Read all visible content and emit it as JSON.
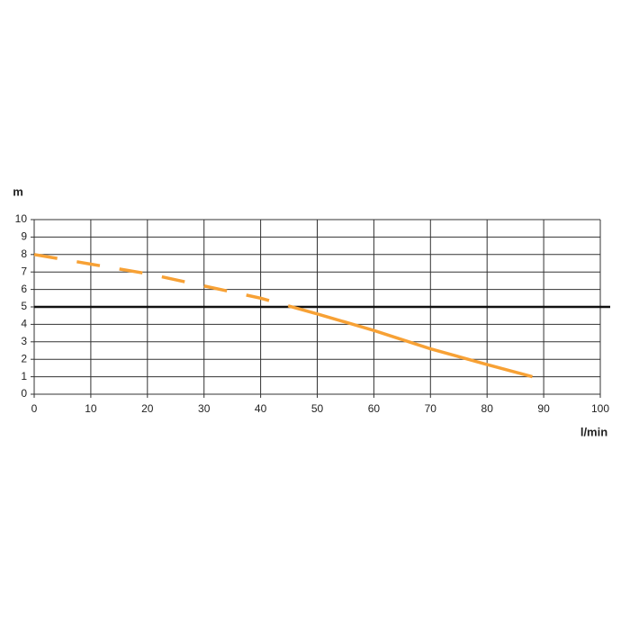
{
  "chart_data": {
    "type": "line",
    "y_label": "m",
    "x_label": "l/min",
    "xlim": [
      0,
      100
    ],
    "xticks": [
      0,
      10,
      20,
      30,
      40,
      50,
      60,
      70,
      80,
      90,
      100
    ],
    "ylim": [
      0,
      10
    ],
    "yticks": [
      0,
      1,
      2,
      3,
      4,
      5,
      6,
      7,
      8,
      9,
      10
    ],
    "grid": true,
    "hline": 5,
    "hline_color": "#111111",
    "series": [
      {
        "color": "#f7a135",
        "dashed": true,
        "x": [
          0,
          10,
          20,
          30,
          40,
          45
        ],
        "values": [
          8,
          7.45,
          6.9,
          6.2,
          5.5,
          5.05
        ]
      },
      {
        "color": "#f7a135",
        "dashed": false,
        "x": [
          45,
          50,
          60,
          70,
          80,
          88
        ],
        "values": [
          5.05,
          4.6,
          3.65,
          2.6,
          1.7,
          1.0
        ]
      }
    ]
  }
}
